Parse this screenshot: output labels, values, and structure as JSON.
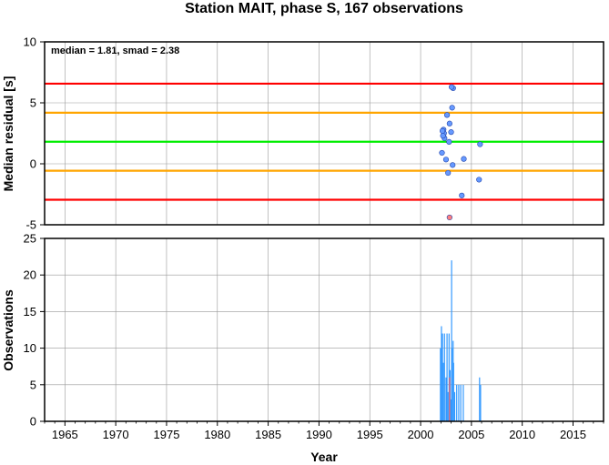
{
  "chart_data": [
    {
      "type": "scatter",
      "title": "Station MAIT, phase S, 167 observations",
      "ylabel": "Median residual [s]",
      "annotation": "median = 1.81, smad = 2.38",
      "xlim": [
        1963,
        2018
      ],
      "ylim": [
        -5,
        10
      ],
      "yticks": [
        "10",
        "5",
        "0",
        "-5"
      ],
      "ytick_values": [
        10,
        5,
        0,
        -5
      ],
      "grid": true,
      "reference_lines": [
        {
          "name": "median",
          "value": 1.81,
          "color": "#00ee00"
        },
        {
          "name": "median + 1 smad",
          "value": 4.19,
          "color": "#ffa500"
        },
        {
          "name": "median - 1 smad",
          "value": -0.57,
          "color": "#ffa500"
        },
        {
          "name": "median + 2 smad",
          "value": 6.57,
          "color": "#ff0000"
        },
        {
          "name": "median - 2 smad",
          "value": -2.95,
          "color": "#ff0000"
        }
      ],
      "series": [
        {
          "color": "#6699ff",
          "x": [
            2002.1,
            2002.25,
            2002.3,
            2002.35,
            2002.5,
            2002.6,
            2002.7,
            2002.8,
            2002.85,
            2003.0,
            2003.1,
            2003.2,
            2003.05,
            2003.15,
            2002.15,
            2002.2,
            2004.05,
            2004.25,
            2005.75,
            2005.85
          ],
          "y": [
            0.9,
            2.8,
            2.5,
            2.1,
            0.35,
            4.0,
            -0.75,
            1.8,
            3.3,
            2.6,
            4.6,
            6.2,
            6.3,
            -0.1,
            2.7,
            2.3,
            -2.6,
            0.4,
            -1.3,
            1.6
          ]
        },
        {
          "color": "#ff7f7f",
          "x": [
            2002.85
          ],
          "y": [
            -4.4
          ]
        }
      ]
    },
    {
      "type": "bar",
      "xlabel": "Year",
      "ylabel": "Observations",
      "xlim": [
        1963,
        2018
      ],
      "ylim": [
        0,
        25
      ],
      "xticks": [
        "1965",
        "1970",
        "1975",
        "1980",
        "1985",
        "1990",
        "1995",
        "2000",
        "2005",
        "2010",
        "2015"
      ],
      "xtick_values": [
        1965,
        1970,
        1975,
        1980,
        1985,
        1990,
        1995,
        2000,
        2005,
        2010,
        2015
      ],
      "yticks": [
        "25",
        "20",
        "15",
        "10",
        "5",
        "0"
      ],
      "ytick_values": [
        25,
        20,
        15,
        10,
        5,
        0
      ],
      "grid": true,
      "series": [
        {
          "color": "#3399ff",
          "x": [
            2001.95,
            2002.05,
            2002.15,
            2002.25,
            2002.35,
            2002.5,
            2002.6,
            2002.7,
            2002.8,
            2002.9,
            2003.0,
            2003.05,
            2003.1,
            2003.2,
            2003.25,
            2003.35,
            2003.55,
            2003.75,
            2003.95,
            2004.2,
            2005.8,
            2005.9
          ],
          "values": [
            10,
            13,
            12,
            8,
            12,
            6,
            12,
            4,
            12,
            7,
            3,
            22,
            10,
            11,
            8,
            4,
            5,
            5,
            5,
            5,
            6,
            5
          ]
        },
        {
          "color": "#ff6666",
          "x": [
            2002.85
          ],
          "values": [
            6
          ]
        }
      ]
    }
  ]
}
